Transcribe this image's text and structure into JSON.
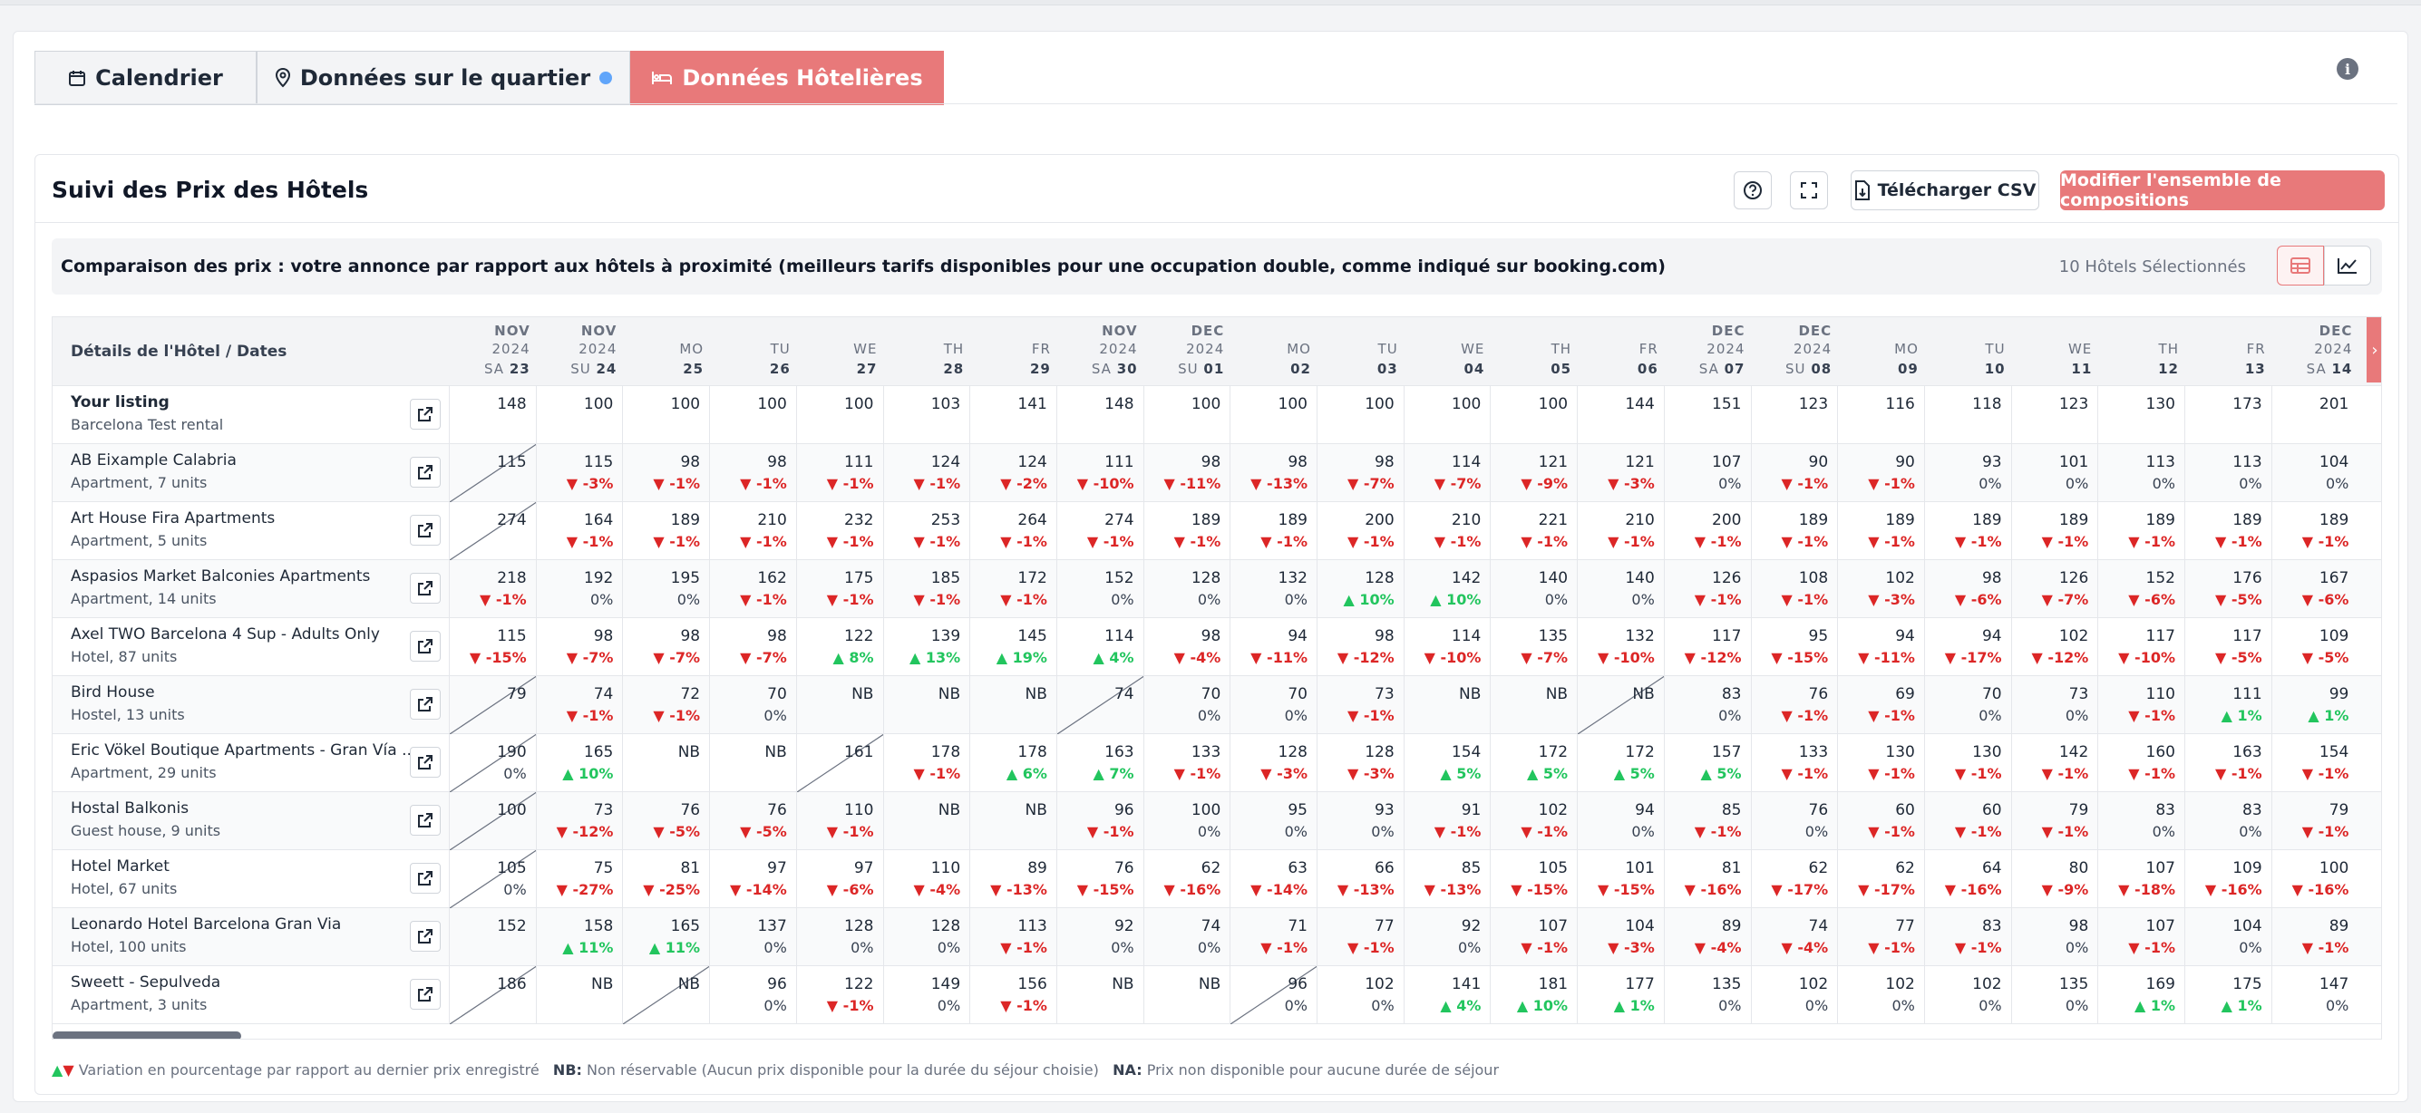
{
  "tabs": [
    {
      "label": "Calendrier",
      "icon": "calendar-icon",
      "active": false
    },
    {
      "label": "Données sur le quartier",
      "icon": "map-pin-icon",
      "active": false
    },
    {
      "label": "Données Hôtelières",
      "icon": "bed-icon",
      "active": true
    }
  ],
  "card": {
    "title": "Suivi des Prix des Hôtels",
    "csv_label": "Télécharger CSV",
    "modify_label": "Modifier l'ensemble de compositions",
    "subtitle": "Comparaison des prix : votre annonce par rapport aux hôtels à proximité (meilleurs tarifs disponibles pour une occupation double, comme indiqué sur booking.com)",
    "selected": "10 Hôtels Sélectionnés",
    "first_col": "Détails de l'Hôtel / Dates"
  },
  "dates": [
    {
      "l1": "NOV",
      "l2": "2024",
      "wd": "SA",
      "d": "23"
    },
    {
      "l1": "NOV",
      "l2": "2024",
      "wd": "SU",
      "d": "24"
    },
    {
      "l1": "",
      "l2": "MO",
      "wd": "",
      "d": "25"
    },
    {
      "l1": "",
      "l2": "TU",
      "wd": "",
      "d": "26"
    },
    {
      "l1": "",
      "l2": "WE",
      "wd": "",
      "d": "27"
    },
    {
      "l1": "",
      "l2": "TH",
      "wd": "",
      "d": "28"
    },
    {
      "l1": "",
      "l2": "FR",
      "wd": "",
      "d": "29"
    },
    {
      "l1": "NOV",
      "l2": "2024",
      "wd": "SA",
      "d": "30"
    },
    {
      "l1": "DEC",
      "l2": "2024",
      "wd": "SU",
      "d": "01"
    },
    {
      "l1": "",
      "l2": "MO",
      "wd": "",
      "d": "02"
    },
    {
      "l1": "",
      "l2": "TU",
      "wd": "",
      "d": "03"
    },
    {
      "l1": "",
      "l2": "WE",
      "wd": "",
      "d": "04"
    },
    {
      "l1": "",
      "l2": "TH",
      "wd": "",
      "d": "05"
    },
    {
      "l1": "",
      "l2": "FR",
      "wd": "",
      "d": "06"
    },
    {
      "l1": "DEC",
      "l2": "2024",
      "wd": "SA",
      "d": "07"
    },
    {
      "l1": "DEC",
      "l2": "2024",
      "wd": "SU",
      "d": "08"
    },
    {
      "l1": "",
      "l2": "MO",
      "wd": "",
      "d": "09"
    },
    {
      "l1": "",
      "l2": "TU",
      "wd": "",
      "d": "10"
    },
    {
      "l1": "",
      "l2": "WE",
      "wd": "",
      "d": "11"
    },
    {
      "l1": "",
      "l2": "TH",
      "wd": "",
      "d": "12"
    },
    {
      "l1": "",
      "l2": "FR",
      "wd": "",
      "d": "13"
    },
    {
      "l1": "DEC",
      "l2": "2024",
      "wd": "SA",
      "d": "14"
    }
  ],
  "rows": [
    {
      "name": "Your listing",
      "type": "Barcelona Test rental",
      "bold": true,
      "cells": [
        [
          "148",
          ""
        ],
        [
          "100",
          ""
        ],
        [
          "100",
          ""
        ],
        [
          "100",
          ""
        ],
        [
          "100",
          ""
        ],
        [
          "103",
          ""
        ],
        [
          "141",
          ""
        ],
        [
          "148",
          ""
        ],
        [
          "100",
          ""
        ],
        [
          "100",
          ""
        ],
        [
          "100",
          ""
        ],
        [
          "100",
          ""
        ],
        [
          "100",
          ""
        ],
        [
          "144",
          ""
        ],
        [
          "151",
          ""
        ],
        [
          "123",
          ""
        ],
        [
          "116",
          ""
        ],
        [
          "118",
          ""
        ],
        [
          "123",
          ""
        ],
        [
          "130",
          ""
        ],
        [
          "173",
          ""
        ],
        [
          "201",
          ""
        ]
      ]
    },
    {
      "name": "AB Eixample Calabria",
      "type": "Apartment, 7 units",
      "cells": [
        [
          "115",
          "/"
        ],
        [
          "115",
          "-3%"
        ],
        [
          "98",
          "-1%"
        ],
        [
          "98",
          "-1%"
        ],
        [
          "111",
          "-1%"
        ],
        [
          "124",
          "-1%"
        ],
        [
          "124",
          "-2%"
        ],
        [
          "111",
          "-10%"
        ],
        [
          "98",
          "-11%"
        ],
        [
          "98",
          "-13%"
        ],
        [
          "98",
          "-7%"
        ],
        [
          "114",
          "-7%"
        ],
        [
          "121",
          "-9%"
        ],
        [
          "121",
          "-3%"
        ],
        [
          "107",
          "0%"
        ],
        [
          "90",
          "-1%"
        ],
        [
          "90",
          "-1%"
        ],
        [
          "93",
          "0%"
        ],
        [
          "101",
          "0%"
        ],
        [
          "113",
          "0%"
        ],
        [
          "113",
          "0%"
        ],
        [
          "104",
          "0%"
        ]
      ]
    },
    {
      "name": "Art House Fira Apartments",
      "type": "Apartment, 5 units",
      "cells": [
        [
          "274",
          "/"
        ],
        [
          "164",
          "-1%"
        ],
        [
          "189",
          "-1%"
        ],
        [
          "210",
          "-1%"
        ],
        [
          "232",
          "-1%"
        ],
        [
          "253",
          "-1%"
        ],
        [
          "264",
          "-1%"
        ],
        [
          "274",
          "-1%"
        ],
        [
          "189",
          "-1%"
        ],
        [
          "189",
          "-1%"
        ],
        [
          "200",
          "-1%"
        ],
        [
          "210",
          "-1%"
        ],
        [
          "221",
          "-1%"
        ],
        [
          "210",
          "-1%"
        ],
        [
          "200",
          "-1%"
        ],
        [
          "189",
          "-1%"
        ],
        [
          "189",
          "-1%"
        ],
        [
          "189",
          "-1%"
        ],
        [
          "189",
          "-1%"
        ],
        [
          "189",
          "-1%"
        ],
        [
          "189",
          "-1%"
        ],
        [
          "189",
          "-1%"
        ]
      ]
    },
    {
      "name": "Aspasios Market Balconies Apartments",
      "type": "Apartment, 14 units",
      "cells": [
        [
          "218",
          "-1%"
        ],
        [
          "192",
          "0%"
        ],
        [
          "195",
          "0%"
        ],
        [
          "162",
          "-1%"
        ],
        [
          "175",
          "-1%"
        ],
        [
          "185",
          "-1%"
        ],
        [
          "172",
          "-1%"
        ],
        [
          "152",
          "0%"
        ],
        [
          "128",
          "0%"
        ],
        [
          "132",
          "0%"
        ],
        [
          "128",
          "+10%"
        ],
        [
          "142",
          "+10%"
        ],
        [
          "140",
          "0%"
        ],
        [
          "140",
          "0%"
        ],
        [
          "126",
          "-1%"
        ],
        [
          "108",
          "-1%"
        ],
        [
          "102",
          "-3%"
        ],
        [
          "98",
          "-6%"
        ],
        [
          "126",
          "-7%"
        ],
        [
          "152",
          "-6%"
        ],
        [
          "176",
          "-5%"
        ],
        [
          "167",
          "-6%"
        ]
      ]
    },
    {
      "name": "Axel TWO Barcelona 4 Sup - Adults Only",
      "type": "Hotel, 87 units",
      "cells": [
        [
          "115",
          "-15%"
        ],
        [
          "98",
          "-7%"
        ],
        [
          "98",
          "-7%"
        ],
        [
          "98",
          "-7%"
        ],
        [
          "122",
          "+8%"
        ],
        [
          "139",
          "+13%"
        ],
        [
          "145",
          "+19%"
        ],
        [
          "114",
          "+4%"
        ],
        [
          "98",
          "-4%"
        ],
        [
          "94",
          "-11%"
        ],
        [
          "98",
          "-12%"
        ],
        [
          "114",
          "-10%"
        ],
        [
          "135",
          "-7%"
        ],
        [
          "132",
          "-10%"
        ],
        [
          "117",
          "-12%"
        ],
        [
          "95",
          "-15%"
        ],
        [
          "94",
          "-11%"
        ],
        [
          "94",
          "-17%"
        ],
        [
          "102",
          "-12%"
        ],
        [
          "117",
          "-10%"
        ],
        [
          "117",
          "-5%"
        ],
        [
          "109",
          "-5%"
        ]
      ]
    },
    {
      "name": "Bird House",
      "type": "Hostel, 13 units",
      "cells": [
        [
          "79",
          "/"
        ],
        [
          "74",
          "-1%"
        ],
        [
          "72",
          "-1%"
        ],
        [
          "70",
          "0%"
        ],
        [
          "NB",
          ""
        ],
        [
          "NB",
          ""
        ],
        [
          "NB",
          ""
        ],
        [
          "74",
          "/"
        ],
        [
          "70",
          "0%"
        ],
        [
          "70",
          "0%"
        ],
        [
          "73",
          "-1%"
        ],
        [
          "NB",
          ""
        ],
        [
          "NB",
          ""
        ],
        [
          "NB",
          "/"
        ],
        [
          "83",
          "0%"
        ],
        [
          "76",
          "-1%"
        ],
        [
          "69",
          "-1%"
        ],
        [
          "70",
          "0%"
        ],
        [
          "73",
          "0%"
        ],
        [
          "110",
          "-1%"
        ],
        [
          "111",
          "+1%"
        ],
        [
          "99",
          "+1%"
        ]
      ]
    },
    {
      "name": "Eric Vökel Boutique Apartments - Gran Vía ...",
      "type": "Apartment, 29 units",
      "cells": [
        [
          "190",
          "0%/"
        ],
        [
          "165",
          "+10%"
        ],
        [
          "NB",
          ""
        ],
        [
          "NB",
          ""
        ],
        [
          "161",
          "/"
        ],
        [
          "178",
          "-1%"
        ],
        [
          "178",
          "+6%"
        ],
        [
          "163",
          "+7%"
        ],
        [
          "133",
          "-1%"
        ],
        [
          "128",
          "-3%"
        ],
        [
          "128",
          "-3%"
        ],
        [
          "154",
          "+5%"
        ],
        [
          "172",
          "+5%"
        ],
        [
          "172",
          "+5%"
        ],
        [
          "157",
          "+5%"
        ],
        [
          "133",
          "-1%"
        ],
        [
          "130",
          "-1%"
        ],
        [
          "130",
          "-1%"
        ],
        [
          "142",
          "-1%"
        ],
        [
          "160",
          "-1%"
        ],
        [
          "163",
          "-1%"
        ],
        [
          "154",
          "-1%"
        ]
      ]
    },
    {
      "name": "Hostal Balkonis",
      "type": "Guest house, 9 units",
      "cells": [
        [
          "100",
          "/"
        ],
        [
          "73",
          "-12%"
        ],
        [
          "76",
          "-5%"
        ],
        [
          "76",
          "-5%"
        ],
        [
          "110",
          "-1%"
        ],
        [
          "NB",
          ""
        ],
        [
          "NB",
          ""
        ],
        [
          "96",
          "-1%"
        ],
        [
          "100",
          "0%"
        ],
        [
          "95",
          "0%"
        ],
        [
          "93",
          "0%"
        ],
        [
          "91",
          "-1%"
        ],
        [
          "102",
          "-1%"
        ],
        [
          "94",
          "0%"
        ],
        [
          "85",
          "-1%"
        ],
        [
          "76",
          "0%"
        ],
        [
          "60",
          "-1%"
        ],
        [
          "60",
          "-1%"
        ],
        [
          "79",
          "-1%"
        ],
        [
          "83",
          "0%"
        ],
        [
          "83",
          "0%"
        ],
        [
          "79",
          "-1%"
        ]
      ]
    },
    {
      "name": "Hotel Market",
      "type": "Hotel, 67 units",
      "cells": [
        [
          "105",
          "0%/"
        ],
        [
          "75",
          "-27%"
        ],
        [
          "81",
          "-25%"
        ],
        [
          "97",
          "-14%"
        ],
        [
          "97",
          "-6%"
        ],
        [
          "110",
          "-4%"
        ],
        [
          "89",
          "-13%"
        ],
        [
          "76",
          "-15%"
        ],
        [
          "62",
          "-16%"
        ],
        [
          "63",
          "-14%"
        ],
        [
          "66",
          "-13%"
        ],
        [
          "85",
          "-13%"
        ],
        [
          "105",
          "-15%"
        ],
        [
          "101",
          "-15%"
        ],
        [
          "81",
          "-16%"
        ],
        [
          "62",
          "-17%"
        ],
        [
          "62",
          "-17%"
        ],
        [
          "64",
          "-16%"
        ],
        [
          "80",
          "-9%"
        ],
        [
          "107",
          "-18%"
        ],
        [
          "109",
          "-16%"
        ],
        [
          "100",
          "-16%"
        ]
      ]
    },
    {
      "name": "Leonardo Hotel Barcelona Gran Via",
      "type": "Hotel, 100 units",
      "cells": [
        [
          "152",
          ""
        ],
        [
          "158",
          "+11%"
        ],
        [
          "165",
          "+11%"
        ],
        [
          "137",
          "0%"
        ],
        [
          "128",
          "0%"
        ],
        [
          "128",
          "0%"
        ],
        [
          "113",
          "-1%"
        ],
        [
          "92",
          "0%"
        ],
        [
          "74",
          "0%"
        ],
        [
          "71",
          "-1%"
        ],
        [
          "77",
          "-1%"
        ],
        [
          "92",
          "0%"
        ],
        [
          "107",
          "-1%"
        ],
        [
          "104",
          "-3%"
        ],
        [
          "89",
          "-4%"
        ],
        [
          "74",
          "-4%"
        ],
        [
          "77",
          "-1%"
        ],
        [
          "83",
          "-1%"
        ],
        [
          "98",
          "0%"
        ],
        [
          "107",
          "-1%"
        ],
        [
          "104",
          "0%"
        ],
        [
          "89",
          "-1%"
        ]
      ]
    },
    {
      "name": "Sweett - Sepulveda",
      "type": "Apartment, 3 units",
      "cells": [
        [
          "186",
          "/"
        ],
        [
          "NB",
          ""
        ],
        [
          "NB",
          "/"
        ],
        [
          "96",
          "0%"
        ],
        [
          "122",
          "-1%"
        ],
        [
          "149",
          "0%"
        ],
        [
          "156",
          "-1%"
        ],
        [
          "NB",
          ""
        ],
        [
          "NB",
          ""
        ],
        [
          "96",
          "0%/"
        ],
        [
          "102",
          "0%"
        ],
        [
          "141",
          "+4%"
        ],
        [
          "181",
          "+10%"
        ],
        [
          "177",
          "+1%"
        ],
        [
          "135",
          "0%"
        ],
        [
          "102",
          "0%"
        ],
        [
          "102",
          "0%"
        ],
        [
          "102",
          "0%"
        ],
        [
          "135",
          "0%"
        ],
        [
          "169",
          "+1%"
        ],
        [
          "175",
          "+1%"
        ],
        [
          "147",
          "0%"
        ]
      ]
    }
  ],
  "legend": {
    "variation": "Variation en pourcentage par rapport au dernier prix enregistré",
    "nb_key": "NB:",
    "nb_text": "Non réservable (Aucun prix disponible pour la durée du séjour choisie)",
    "na_key": "NA:",
    "na_text": "Prix non disponible pour aucune durée de séjour"
  }
}
